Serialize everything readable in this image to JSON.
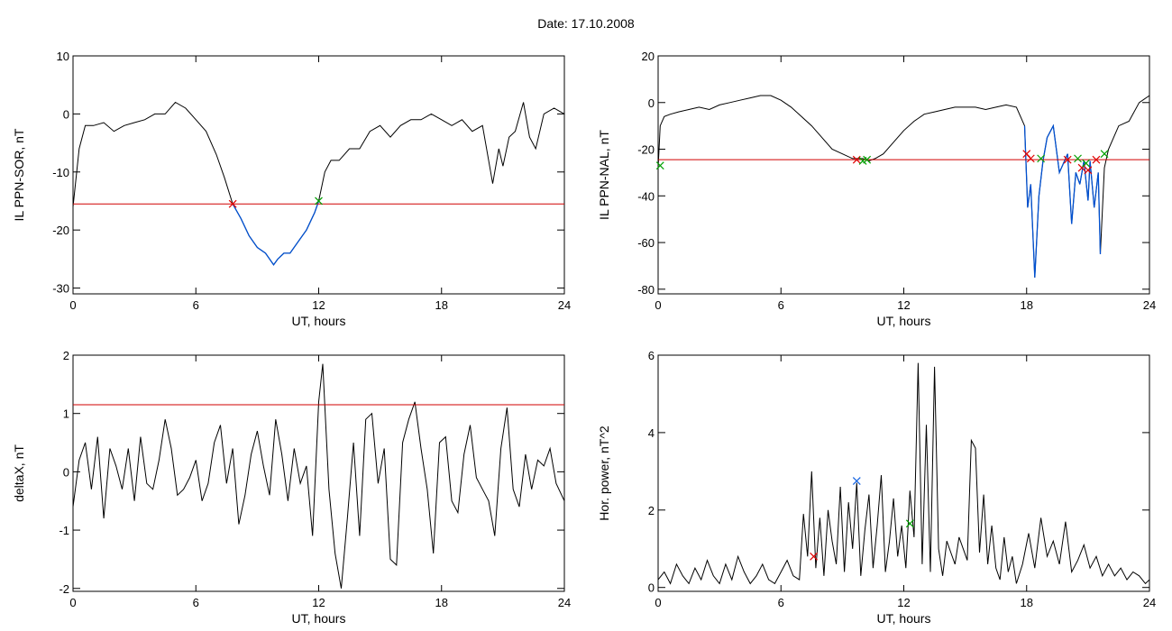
{
  "page": {
    "title": "Date:  17.10.2008"
  },
  "colors": {
    "trace": "#000000",
    "threshold": "#d00000",
    "highlight": "#0050d0",
    "marker_red": "#e00000",
    "marker_green": "#00a000",
    "marker_blue": "#1060e0"
  },
  "chart_data": [
    {
      "type": "line",
      "xlabel": "UT, hours",
      "ylabel": "IL PPN-SOR, nT",
      "xlim": [
        0,
        24
      ],
      "ylim": [
        -31,
        10
      ],
      "xticks": [
        0,
        6,
        12,
        18,
        24
      ],
      "yticks": [
        -30,
        -20,
        -10,
        0,
        10
      ],
      "threshold": -15.5,
      "x": [
        0,
        0.3,
        0.6,
        1,
        1.5,
        2,
        2.5,
        3,
        3.5,
        4,
        4.5,
        5,
        5.5,
        6,
        6.5,
        7,
        7.4,
        7.8,
        8.2,
        8.6,
        9,
        9.4,
        9.8,
        10,
        10.3,
        10.6,
        11,
        11.4,
        11.8,
        12,
        12.3,
        12.6,
        13,
        13.5,
        14,
        14.5,
        15,
        15.5,
        16,
        16.5,
        17,
        17.5,
        18,
        18.5,
        19,
        19.5,
        20,
        20.3,
        20.5,
        20.8,
        21,
        21.3,
        21.6,
        22,
        22.3,
        22.6,
        23,
        23.5,
        24
      ],
      "y": [
        -16,
        -6,
        -2,
        -2,
        -1.5,
        -3,
        -2,
        -1.5,
        -1,
        0,
        0,
        2,
        1,
        -1,
        -3,
        -7,
        -11,
        -15.5,
        -18,
        -21,
        -23,
        -24,
        -26,
        -25,
        -24,
        -24,
        -22,
        -20,
        -17,
        -15,
        -10,
        -8,
        -8,
        -6,
        -6,
        -3,
        -2,
        -4,
        -2,
        -1,
        -1,
        0,
        -1,
        -2,
        -1,
        -3,
        -2,
        -8,
        -12,
        -6,
        -9,
        -4,
        -3,
        2,
        -4,
        -6,
        0,
        1,
        0
      ],
      "highlight_range": [
        7.8,
        12.0
      ],
      "markers": [
        {
          "x": 7.8,
          "y": -15.5,
          "color": "red"
        },
        {
          "x": 12.0,
          "y": -15.0,
          "color": "green"
        }
      ]
    },
    {
      "type": "line",
      "xlabel": "UT, hours",
      "ylabel": "IL PPN-NAL, nT",
      "xlim": [
        0,
        24
      ],
      "ylim": [
        -82,
        20
      ],
      "xticks": [
        0,
        6,
        12,
        18,
        24
      ],
      "yticks": [
        -80,
        -60,
        -40,
        -20,
        0,
        20
      ],
      "threshold": -24.5,
      "x": [
        0,
        0.1,
        0.3,
        0.6,
        1,
        1.5,
        2,
        2.5,
        3,
        3.5,
        4,
        4.5,
        5,
        5.5,
        6,
        6.5,
        7,
        7.5,
        8,
        8.5,
        9,
        9.5,
        10,
        10.3,
        10.6,
        11,
        11.5,
        12,
        12.5,
        13,
        13.5,
        14,
        14.5,
        15,
        15.5,
        16,
        16.5,
        17,
        17.5,
        17.9,
        18.05,
        18.2,
        18.4,
        18.6,
        18.8,
        19,
        19.3,
        19.6,
        20,
        20.2,
        20.4,
        20.6,
        20.8,
        21,
        21.1,
        21.3,
        21.5,
        21.6,
        21.8,
        22,
        22.5,
        23,
        23.5,
        24
      ],
      "y": [
        -28,
        -10,
        -6,
        -5,
        -4,
        -3,
        -2,
        -3,
        -1,
        0,
        1,
        2,
        3,
        3,
        1,
        -2,
        -6,
        -10,
        -15,
        -20,
        -22,
        -24,
        -24,
        -25,
        -24,
        -22,
        -17,
        -12,
        -8,
        -5,
        -4,
        -3,
        -2,
        -2,
        -2,
        -3,
        -2,
        -1,
        -2,
        -10,
        -45,
        -35,
        -75,
        -40,
        -25,
        -15,
        -10,
        -30,
        -22,
        -52,
        -30,
        -35,
        -25,
        -42,
        -25,
        -45,
        -30,
        -65,
        -28,
        -20,
        -10,
        -8,
        0,
        3
      ],
      "highlight_range": [
        17.9,
        21.7
      ],
      "markers": [
        {
          "x": 0.1,
          "y": -27,
          "color": "green"
        },
        {
          "x": 9.7,
          "y": -24.5,
          "color": "red"
        },
        {
          "x": 10.0,
          "y": -25,
          "color": "green"
        },
        {
          "x": 10.2,
          "y": -24.5,
          "color": "green"
        },
        {
          "x": 18.0,
          "y": -22,
          "color": "red"
        },
        {
          "x": 18.2,
          "y": -24,
          "color": "red"
        },
        {
          "x": 18.7,
          "y": -24,
          "color": "green"
        },
        {
          "x": 20.0,
          "y": -24.5,
          "color": "red"
        },
        {
          "x": 20.5,
          "y": -24,
          "color": "green"
        },
        {
          "x": 20.7,
          "y": -28,
          "color": "red"
        },
        {
          "x": 20.9,
          "y": -26,
          "color": "green"
        },
        {
          "x": 21.0,
          "y": -29,
          "color": "red"
        },
        {
          "x": 21.4,
          "y": -24.5,
          "color": "red"
        },
        {
          "x": 21.8,
          "y": -22,
          "color": "green"
        }
      ]
    },
    {
      "type": "line",
      "xlabel": "UT, hours",
      "ylabel": "deltaX, nT",
      "xlim": [
        0,
        24
      ],
      "ylim": [
        -2.05,
        2.0
      ],
      "xticks": [
        0,
        6,
        12,
        18,
        24
      ],
      "yticks": [
        -2,
        -1,
        0,
        1,
        2
      ],
      "threshold": 1.15,
      "x": [
        0,
        0.3,
        0.6,
        0.9,
        1.2,
        1.5,
        1.8,
        2.1,
        2.4,
        2.7,
        3,
        3.3,
        3.6,
        3.9,
        4.2,
        4.5,
        4.8,
        5.1,
        5.4,
        5.7,
        6,
        6.3,
        6.6,
        6.9,
        7.2,
        7.5,
        7.8,
        8.1,
        8.4,
        8.7,
        9,
        9.3,
        9.6,
        9.9,
        10.2,
        10.5,
        10.8,
        11.1,
        11.4,
        11.7,
        12,
        12.2,
        12.5,
        12.8,
        13.1,
        13.4,
        13.7,
        14,
        14.3,
        14.6,
        14.9,
        15.2,
        15.5,
        15.8,
        16.1,
        16.4,
        16.7,
        17,
        17.3,
        17.6,
        17.9,
        18.2,
        18.5,
        18.8,
        19.1,
        19.4,
        19.7,
        20,
        20.3,
        20.6,
        20.9,
        21.2,
        21.5,
        21.8,
        22.1,
        22.4,
        22.7,
        23,
        23.3,
        23.6,
        24
      ],
      "y": [
        -0.6,
        0.2,
        0.5,
        -0.3,
        0.6,
        -0.8,
        0.4,
        0.1,
        -0.3,
        0.4,
        -0.5,
        0.6,
        -0.2,
        -0.3,
        0.2,
        0.9,
        0.4,
        -0.4,
        -0.3,
        -0.1,
        0.2,
        -0.5,
        -0.2,
        0.5,
        0.8,
        -0.2,
        0.4,
        -0.9,
        -0.4,
        0.3,
        0.7,
        0.1,
        -0.4,
        0.9,
        0.3,
        -0.5,
        0.4,
        -0.2,
        0.1,
        -1.1,
        1.2,
        1.85,
        -0.3,
        -1.4,
        -2.0,
        -0.8,
        0.5,
        -1.1,
        0.9,
        1.0,
        -0.2,
        0.4,
        -1.5,
        -1.6,
        0.5,
        0.9,
        1.2,
        0.4,
        -0.3,
        -1.4,
        0.5,
        0.6,
        -0.5,
        -0.7,
        0.3,
        0.8,
        -0.1,
        -0.3,
        -0.5,
        -1.1,
        0.4,
        1.1,
        -0.3,
        -0.6,
        0.3,
        -0.3,
        0.2,
        0.1,
        0.4,
        -0.2,
        -0.5
      ]
    },
    {
      "type": "line",
      "xlabel": "UT, hours",
      "ylabel": "Hor. power, nT^2",
      "xlim": [
        0,
        24
      ],
      "ylim": [
        -0.1,
        6
      ],
      "xticks": [
        0,
        6,
        12,
        18,
        24
      ],
      "yticks": [
        0,
        2,
        4,
        6
      ],
      "x": [
        0,
        0.3,
        0.6,
        0.9,
        1.2,
        1.5,
        1.8,
        2.1,
        2.4,
        2.7,
        3,
        3.3,
        3.6,
        3.9,
        4.2,
        4.5,
        4.8,
        5.1,
        5.4,
        5.7,
        6,
        6.3,
        6.6,
        6.9,
        7.1,
        7.3,
        7.5,
        7.7,
        7.9,
        8.1,
        8.3,
        8.5,
        8.7,
        8.9,
        9.1,
        9.3,
        9.5,
        9.7,
        9.9,
        10.1,
        10.3,
        10.5,
        10.7,
        10.9,
        11.1,
        11.3,
        11.5,
        11.7,
        11.9,
        12.1,
        12.3,
        12.5,
        12.7,
        12.9,
        13.1,
        13.3,
        13.5,
        13.7,
        13.9,
        14.1,
        14.3,
        14.5,
        14.7,
        14.9,
        15.1,
        15.3,
        15.5,
        15.7,
        15.9,
        16.1,
        16.3,
        16.5,
        16.7,
        16.9,
        17.1,
        17.3,
        17.5,
        17.8,
        18.1,
        18.4,
        18.7,
        19,
        19.3,
        19.6,
        19.9,
        20.2,
        20.5,
        20.8,
        21.1,
        21.4,
        21.7,
        22,
        22.3,
        22.6,
        22.9,
        23.2,
        23.5,
        23.8,
        24
      ],
      "y": [
        0.2,
        0.4,
        0.1,
        0.6,
        0.3,
        0.1,
        0.5,
        0.2,
        0.7,
        0.3,
        0.1,
        0.6,
        0.2,
        0.8,
        0.4,
        0.1,
        0.3,
        0.6,
        0.2,
        0.1,
        0.4,
        0.7,
        0.3,
        0.2,
        1.9,
        0.8,
        3.0,
        0.5,
        1.8,
        0.3,
        2.0,
        1.2,
        0.6,
        2.6,
        0.4,
        2.2,
        1.0,
        2.7,
        0.3,
        1.5,
        2.4,
        0.5,
        1.6,
        2.9,
        0.4,
        1.2,
        2.3,
        0.8,
        1.6,
        0.5,
        2.5,
        1.3,
        5.8,
        0.6,
        4.2,
        0.4,
        5.7,
        1.0,
        0.3,
        1.2,
        0.9,
        0.6,
        1.3,
        1.0,
        0.7,
        3.8,
        3.6,
        0.9,
        2.4,
        0.6,
        1.6,
        0.5,
        0.2,
        1.3,
        0.4,
        0.8,
        0.1,
        0.6,
        1.4,
        0.5,
        1.8,
        0.8,
        1.2,
        0.6,
        1.7,
        0.4,
        0.7,
        1.1,
        0.5,
        0.8,
        0.3,
        0.6,
        0.3,
        0.5,
        0.2,
        0.4,
        0.3,
        0.1,
        0.2
      ],
      "markers": [
        {
          "x": 7.6,
          "y": 0.8,
          "color": "red"
        },
        {
          "x": 9.7,
          "y": 2.75,
          "color": "blue"
        },
        {
          "x": 12.3,
          "y": 1.65,
          "color": "green"
        }
      ]
    }
  ]
}
